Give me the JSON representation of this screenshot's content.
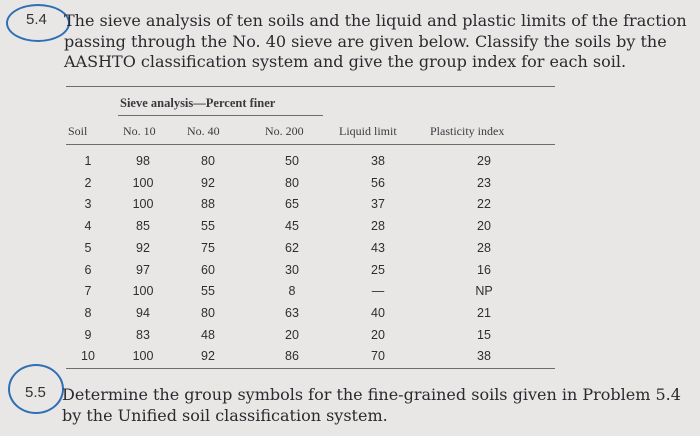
{
  "problem_1": {
    "number": "5.4",
    "lines": [
      "The sieve analysis of ten soils and the liquid and plastic limits of the fraction",
      "passing through the No. 40 sieve are given below. Classify the soils by the",
      "AASHTO classification system and give the group index for each soil."
    ]
  },
  "table": {
    "group_header": "Sieve analysis—Percent finer",
    "headers": [
      "Soil",
      "No. 10",
      "No. 40",
      "No. 200",
      "Liquid limit",
      "Plasticity index"
    ],
    "rows": [
      [
        "1",
        "98",
        "80",
        "50",
        "38",
        "29"
      ],
      [
        "2",
        "100",
        "92",
        "80",
        "56",
        "23"
      ],
      [
        "3",
        "100",
        "88",
        "65",
        "37",
        "22"
      ],
      [
        "4",
        "85",
        "55",
        "45",
        "28",
        "20"
      ],
      [
        "5",
        "92",
        "75",
        "62",
        "43",
        "28"
      ],
      [
        "6",
        "97",
        "60",
        "30",
        "25",
        "16"
      ],
      [
        "7",
        "100",
        "55",
        "8",
        "—",
        "NP"
      ],
      [
        "8",
        "94",
        "80",
        "63",
        "40",
        "21"
      ],
      [
        "9",
        "83",
        "48",
        "20",
        "20",
        "15"
      ],
      [
        "10",
        "100",
        "92",
        "86",
        "70",
        "38"
      ]
    ]
  },
  "problem_2": {
    "number": "5.5",
    "lines": [
      "Determine the group symbols for the fine-grained soils given in Problem 5.4",
      "by the Unified soil classification system."
    ]
  }
}
